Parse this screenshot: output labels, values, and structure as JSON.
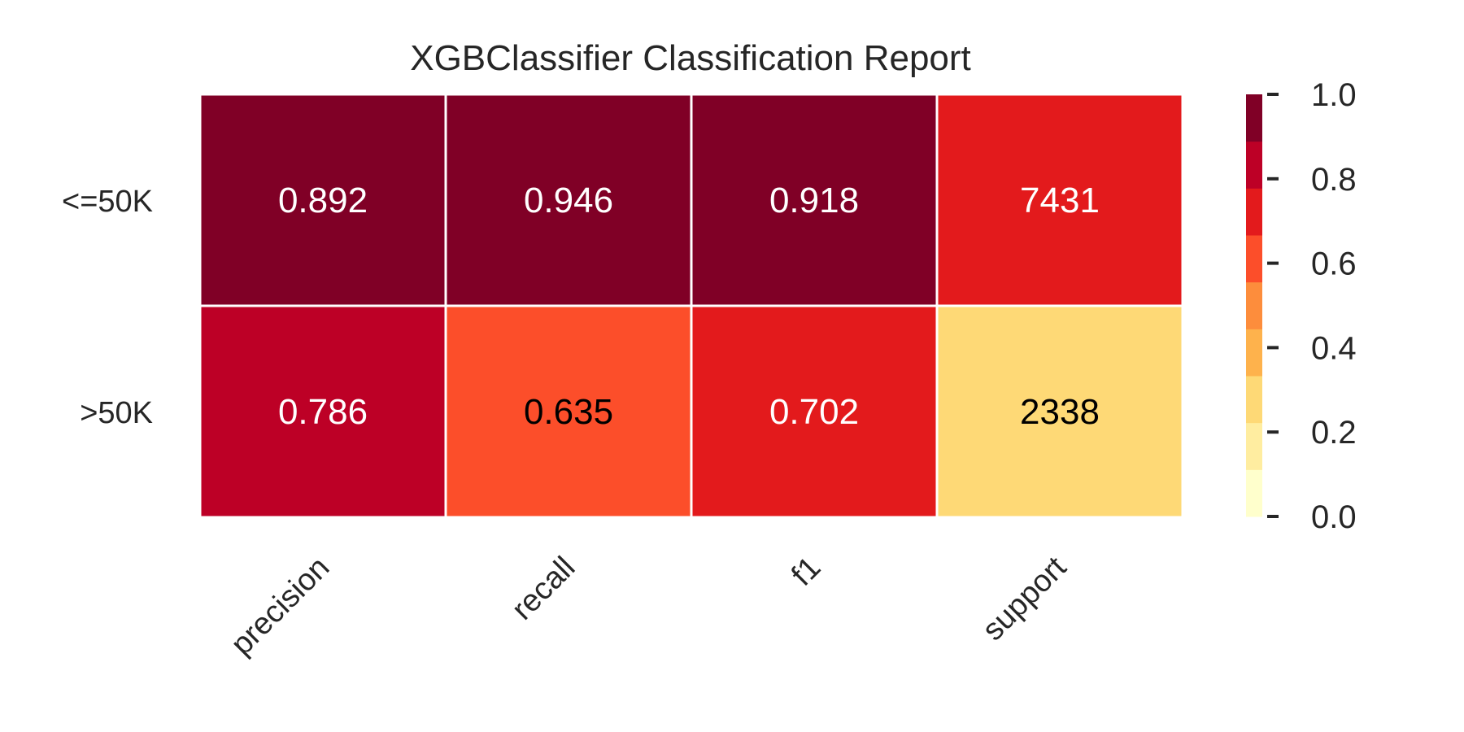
{
  "chart_data": {
    "type": "heatmap",
    "title": "XGBClassifier Classification Report",
    "rows": [
      "<=50K",
      ">50K"
    ],
    "columns": [
      "precision",
      "recall",
      "f1",
      "support"
    ],
    "values": [
      [
        0.892,
        0.946,
        0.918,
        0.741
      ],
      [
        0.786,
        0.635,
        0.702,
        0.233
      ]
    ],
    "cell_labels": [
      [
        "0.892",
        "0.946",
        "0.918",
        "7431"
      ],
      [
        "0.786",
        "0.635",
        "0.702",
        "2338"
      ]
    ],
    "text_colors": [
      [
        "#ffffff",
        "#ffffff",
        "#ffffff",
        "#ffffff"
      ],
      [
        "#ffffff",
        "#000000",
        "#ffffff",
        "#000000"
      ]
    ],
    "colorbar": {
      "ticks": [
        "0.0",
        "0.2",
        "0.4",
        "0.6",
        "0.8",
        "1.0"
      ],
      "range": [
        0,
        1
      ],
      "levels": [
        "#ffffcc",
        "#ffeda0",
        "#fed976",
        "#feb24c",
        "#fd8d3c",
        "#fc4e2a",
        "#e31a1c",
        "#bd0026",
        "#800026"
      ]
    },
    "colors": {
      "grid_line": "#ffffff",
      "text": "#262626",
      "tick_mark": "#262626"
    }
  }
}
